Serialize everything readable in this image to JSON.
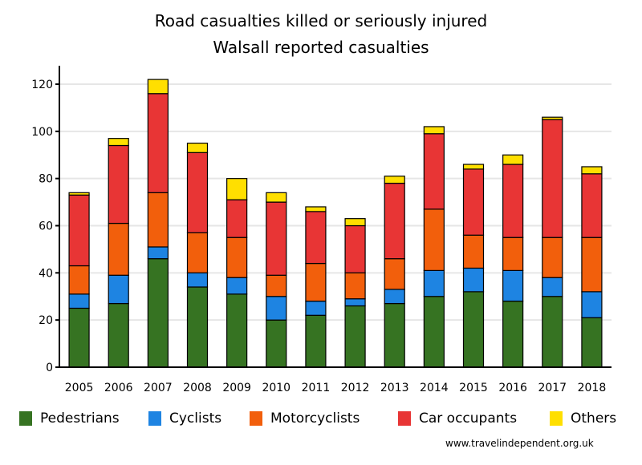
{
  "chart_data": {
    "type": "bar",
    "stacked": true,
    "title": "Road casualties killed or seriously injured",
    "subtitle": "Walsall reported casualties",
    "xlabel": "",
    "ylabel": "",
    "ylim": [
      0,
      125
    ],
    "yticks": [
      0,
      20,
      40,
      60,
      80,
      100,
      120
    ],
    "grid": true,
    "legend_position": "bottom",
    "categories": [
      "2005",
      "2006",
      "2007",
      "2008",
      "2009",
      "2010",
      "2011",
      "2012",
      "2013",
      "2014",
      "2015",
      "2016",
      "2017",
      "2018"
    ],
    "series": [
      {
        "name": "Pedestrians",
        "color": "#367322",
        "values": [
          25,
          27,
          46,
          34,
          31,
          20,
          22,
          26,
          27,
          30,
          32,
          28,
          30,
          21
        ]
      },
      {
        "name": "Cyclists",
        "color": "#1e84e2",
        "values": [
          6,
          12,
          5,
          6,
          7,
          10,
          6,
          3,
          6,
          11,
          10,
          13,
          8,
          11
        ]
      },
      {
        "name": "Motorcyclists",
        "color": "#f25f0c",
        "values": [
          12,
          22,
          23,
          17,
          17,
          9,
          16,
          11,
          13,
          26,
          14,
          14,
          17,
          23
        ]
      },
      {
        "name": "Car occupants",
        "color": "#e83535",
        "values": [
          30,
          33,
          42,
          34,
          16,
          31,
          22,
          20,
          32,
          32,
          28,
          31,
          50,
          27
        ]
      },
      {
        "name": "Others",
        "color": "#ffdf00",
        "values": [
          1,
          3,
          6,
          4,
          9,
          4,
          2,
          3,
          3,
          3,
          2,
          4,
          1,
          3
        ]
      }
    ]
  },
  "footer": {
    "source": "www.travelindependent.org.uk"
  }
}
